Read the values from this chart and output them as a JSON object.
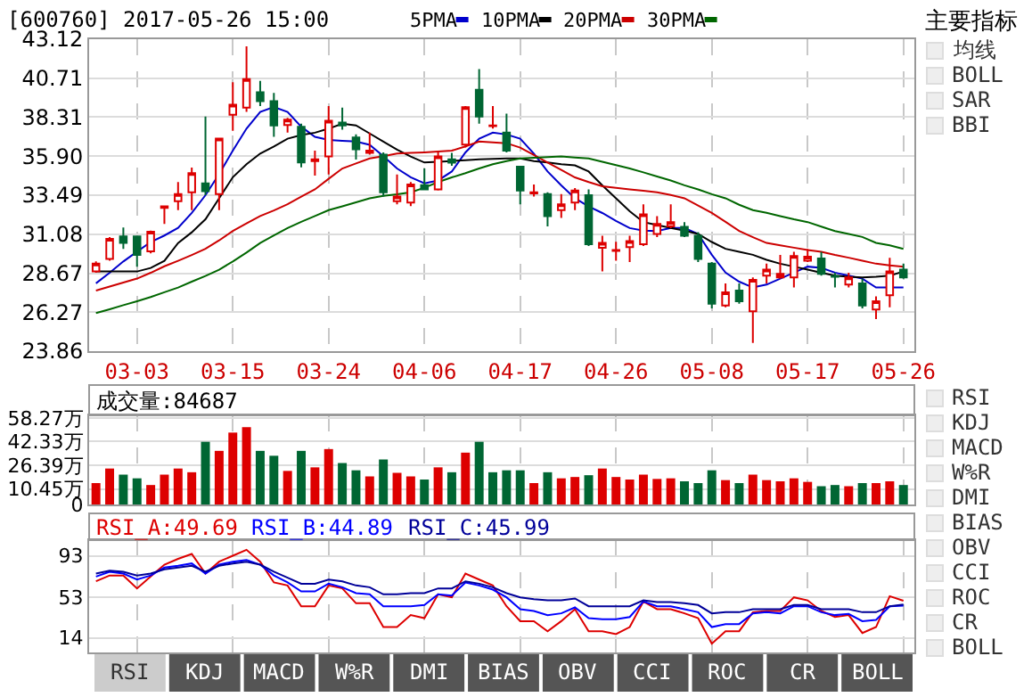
{
  "chart_data": [
    {
      "type": "candlestick",
      "title": "[600760] 2017-05-26 15:00",
      "categories": [
        null,
        null,
        null,
        "03-03",
        null,
        null,
        null,
        null,
        null,
        null,
        "03-15",
        null,
        null,
        null,
        null,
        null,
        null,
        "03-24",
        null,
        null,
        null,
        null,
        null,
        null,
        "04-06",
        null,
        null,
        null,
        null,
        null,
        null,
        "04-17",
        null,
        null,
        null,
        null,
        null,
        null,
        "04-26",
        null,
        null,
        null,
        null,
        null,
        null,
        "05-08",
        null,
        null,
        null,
        null,
        null,
        null,
        "05-17",
        null,
        null,
        null,
        null,
        null,
        null,
        "05-26"
      ],
      "ohlc": [
        [
          28.78,
          29.4,
          28.7,
          29.26
        ],
        [
          29.55,
          30.9,
          29.45,
          30.8
        ],
        [
          30.95,
          31.5,
          30.18,
          30.54
        ],
        [
          30.95,
          31.0,
          29.07,
          29.8
        ],
        [
          30.03,
          31.3,
          29.9,
          31.24
        ],
        [
          32.7,
          32.85,
          31.72,
          32.8
        ],
        [
          33.12,
          34.3,
          32.57,
          33.56
        ],
        [
          33.67,
          35.2,
          32.57,
          34.85
        ],
        [
          34.22,
          38.34,
          33.49,
          33.74
        ],
        [
          33.56,
          36.98,
          32.57,
          36.98
        ],
        [
          38.45,
          40.47,
          37.46,
          39.08
        ],
        [
          38.89,
          42.68,
          38.63,
          40.66
        ],
        [
          39.85,
          40.55,
          39.0,
          39.3
        ],
        [
          39.3,
          39.81,
          37.09,
          37.79
        ],
        [
          37.83,
          38.27,
          37.35,
          38.16
        ],
        [
          37.72,
          37.9,
          35.21,
          35.51
        ],
        [
          35.6,
          36.24,
          34.7,
          35.7
        ],
        [
          35.88,
          39.0,
          34.77,
          38.08
        ],
        [
          37.97,
          38.89,
          37.53,
          37.79
        ],
        [
          37.05,
          37.24,
          35.69,
          36.32
        ],
        [
          36.1,
          37.35,
          35.99,
          36.24
        ],
        [
          35.99,
          36.13,
          33.41,
          33.67
        ],
        [
          33.12,
          34.77,
          32.93,
          33.41
        ],
        [
          33.04,
          34.3,
          32.82,
          34.15
        ],
        [
          34.11,
          35.14,
          33.8,
          33.85
        ],
        [
          33.85,
          36.13,
          33.78,
          35.88
        ],
        [
          35.7,
          36.1,
          35.3,
          35.5
        ],
        [
          36.61,
          39.0,
          36.43,
          38.93
        ],
        [
          40.0,
          41.28,
          37.9,
          38.34
        ],
        [
          37.75,
          39.0,
          37.6,
          37.8
        ],
        [
          37.35,
          38.52,
          36.13,
          36.24
        ],
        [
          35.25,
          35.25,
          32.93,
          33.78
        ],
        [
          33.6,
          34.15,
          33.41,
          33.67
        ],
        [
          33.56,
          33.67,
          31.57,
          32.2
        ],
        [
          32.57,
          33.56,
          32.09,
          32.93
        ],
        [
          33.04,
          33.93,
          32.57,
          33.78
        ],
        [
          33.49,
          33.85,
          30.36,
          30.47
        ],
        [
          30.25,
          30.99,
          28.78,
          30.54
        ],
        [
          30.05,
          30.62,
          29.44,
          30.1
        ],
        [
          30.29,
          30.99,
          29.37,
          30.65
        ],
        [
          30.47,
          32.93,
          30.36,
          32.31
        ],
        [
          31.1,
          32.2,
          30.9,
          31.72
        ],
        [
          31.57,
          32.93,
          31.46,
          31.83
        ],
        [
          31.54,
          31.83,
          30.91,
          30.99
        ],
        [
          30.99,
          31.21,
          29.37,
          29.55
        ],
        [
          29.26,
          29.37,
          26.5,
          26.79
        ],
        [
          26.68,
          28.04,
          26.57,
          27.49
        ],
        [
          27.6,
          28.04,
          26.79,
          26.94
        ],
        [
          26.32,
          28.41,
          24.37,
          28.26
        ],
        [
          28.52,
          29.26,
          28.04,
          28.89
        ],
        [
          28.41,
          29.81,
          28.33,
          28.63
        ],
        [
          28.41,
          30.0,
          27.79,
          29.74
        ],
        [
          29.44,
          30.18,
          29.37,
          29.7
        ],
        [
          29.59,
          30.0,
          28.52,
          28.63
        ],
        [
          28.5,
          28.7,
          27.79,
          28.45
        ],
        [
          27.97,
          28.7,
          27.79,
          28.41
        ],
        [
          28.04,
          28.33,
          26.5,
          26.68
        ],
        [
          26.43,
          27.24,
          25.84,
          26.94
        ],
        [
          27.31,
          29.63,
          26.57,
          28.78
        ],
        [
          28.89,
          29.26,
          28.33,
          28.41
        ]
      ],
      "series": [
        {
          "name": "5PMA",
          "type": "line",
          "color": "#0000cc",
          "values": [
            28.05,
            28.7,
            29.4,
            30.0,
            30.6,
            31.0,
            31.47,
            32.4,
            33.49,
            34.8,
            36.24,
            37.6,
            38.63,
            38.93,
            38.63,
            37.72,
            37.09,
            36.9,
            36.85,
            36.8,
            36.6,
            35.9,
            35.14,
            34.6,
            34.22,
            34.4,
            34.95,
            36.13,
            36.98,
            37.35,
            37.24,
            36.98,
            36.06,
            34.95,
            34.1,
            33.3,
            32.8,
            32.39,
            31.9,
            31.46,
            31.3,
            31.28,
            31.47,
            31.47,
            31.1,
            29.81,
            28.71,
            28.15,
            27.79,
            27.97,
            28.34,
            28.71,
            29.08,
            29.0,
            28.71,
            28.52,
            28.34,
            27.79,
            27.79,
            27.79
          ]
        },
        {
          "name": "10PMA",
          "type": "line",
          "color": "#000000",
          "values": [
            28.78,
            28.78,
            28.78,
            28.78,
            29.0,
            29.44,
            30.54,
            31.2,
            32.0,
            33.3,
            34.6,
            35.4,
            36.06,
            36.5,
            36.98,
            37.2,
            37.35,
            37.6,
            37.9,
            37.8,
            37.3,
            36.8,
            36.3,
            35.88,
            35.51,
            35.55,
            35.6,
            35.65,
            35.7,
            35.73,
            35.76,
            35.76,
            35.6,
            35.51,
            35.4,
            35.33,
            34.95,
            34.1,
            33.3,
            32.5,
            31.83,
            31.65,
            31.47,
            31.3,
            31.1,
            30.6,
            30.18,
            30.0,
            29.81,
            29.5,
            29.26,
            29.08,
            28.89,
            28.7,
            28.52,
            28.45,
            28.41,
            28.45,
            28.52,
            28.78
          ]
        },
        {
          "name": "20PMA",
          "type": "line",
          "color": "#cc0000",
          "values": [
            27.6,
            27.85,
            28.1,
            28.34,
            28.7,
            29.1,
            29.44,
            29.8,
            30.18,
            30.7,
            31.28,
            31.75,
            32.2,
            32.55,
            32.93,
            33.4,
            33.85,
            34.5,
            35.14,
            35.45,
            35.76,
            35.9,
            36.06,
            36.1,
            36.13,
            36.18,
            36.24,
            36.5,
            36.8,
            36.75,
            36.7,
            36.43,
            35.97,
            35.51,
            35.05,
            34.59,
            34.3,
            34.04,
            33.95,
            33.85,
            33.76,
            33.67,
            33.5,
            33.3,
            32.85,
            32.39,
            31.85,
            31.28,
            30.9,
            30.54,
            30.4,
            30.25,
            30.1,
            29.99,
            29.8,
            29.63,
            29.45,
            29.26,
            29.15,
            29.08
          ]
        },
        {
          "name": "30PMA",
          "type": "line",
          "color": "#006600",
          "values": [
            26.21,
            26.45,
            26.7,
            26.94,
            27.2,
            27.5,
            27.79,
            28.15,
            28.5,
            28.89,
            29.4,
            29.95,
            30.54,
            31.0,
            31.46,
            31.85,
            32.2,
            32.57,
            32.8,
            33.05,
            33.3,
            33.45,
            33.55,
            33.67,
            33.95,
            34.3,
            34.59,
            34.85,
            35.14,
            35.4,
            35.6,
            35.76,
            35.8,
            35.84,
            35.88,
            35.82,
            35.76,
            35.55,
            35.35,
            35.14,
            34.9,
            34.65,
            34.4,
            34.1,
            33.85,
            33.55,
            33.3,
            32.9,
            32.57,
            32.4,
            32.2,
            32.0,
            31.83,
            31.55,
            31.28,
            31.1,
            30.91,
            30.55,
            30.4,
            30.18
          ]
        }
      ],
      "ylim": [
        23.86,
        43.12
      ],
      "yticks": [
        23.86,
        26.27,
        28.67,
        31.08,
        33.49,
        {
          "value": 35.9,
          "label": "35.90"
        },
        38.31,
        40.71,
        43.12
      ],
      "grid": true,
      "legend": "top"
    },
    {
      "type": "bar",
      "title": "成交量:84687",
      "categories": [
        null,
        null,
        null,
        null,
        null,
        null,
        null,
        null,
        null,
        null,
        null,
        null,
        null,
        null,
        null,
        null,
        null,
        null,
        null,
        null,
        null,
        null,
        null,
        null,
        null,
        null,
        null,
        null,
        null,
        null,
        null,
        null,
        null,
        null,
        null,
        null,
        null,
        null,
        null,
        null,
        null,
        null,
        null,
        null,
        null,
        null,
        null,
        null,
        null,
        null,
        null,
        null,
        null,
        null,
        null,
        null,
        null,
        null,
        null,
        null
      ],
      "values": [
        14.4,
        24.2,
        20.1,
        17.6,
        13.1,
        20.1,
        24.2,
        21.7,
        42.2,
        36.1,
        48.4,
        52.1,
        36.1,
        32.8,
        22.6,
        36.1,
        25.0,
        37.3,
        27.9,
        23.0,
        18.9,
        30.3,
        21.3,
        18.9,
        16.8,
        25.0,
        21.7,
        34.9,
        42.2,
        21.7,
        23.0,
        23.0,
        14.4,
        21.7,
        17.6,
        18.5,
        19.7,
        24.2,
        18.5,
        16.8,
        20.1,
        17.2,
        17.6,
        15.6,
        14.4,
        23.0,
        16.4,
        14.4,
        20.1,
        16.4,
        15.6,
        17.6,
        15.2,
        12.3,
        13.1,
        12.3,
        14.4,
        14.4,
        15.6,
        13.1
      ],
      "colors": [
        "#dd0000",
        "#dd0000",
        "#006633",
        "#006633",
        "#dd0000",
        "#dd0000",
        "#dd0000",
        "#dd0000",
        "#006633",
        "#dd0000",
        "#dd0000",
        "#dd0000",
        "#006633",
        "#006633",
        "#dd0000",
        "#006633",
        "#dd0000",
        "#dd0000",
        "#006633",
        "#006633",
        "#dd0000",
        "#006633",
        "#dd0000",
        "#dd0000",
        "#006633",
        "#dd0000",
        "#006633",
        "#dd0000",
        "#006633",
        "#006633",
        "#006633",
        "#006633",
        "#dd0000",
        "#006633",
        "#dd0000",
        "#dd0000",
        "#006633",
        "#dd0000",
        "#dd0000",
        "#dd0000",
        "#dd0000",
        "#dd0000",
        "#dd0000",
        "#006633",
        "#006633",
        "#006633",
        "#dd0000",
        "#006633",
        "#dd0000",
        "#dd0000",
        "#dd0000",
        "#dd0000",
        "#dd0000",
        "#006633",
        "#006633",
        "#dd0000",
        "#006633",
        "#dd0000",
        "#dd0000",
        "#006633"
      ],
      "ylim": [
        0,
        60
      ],
      "yticks": [
        0,
        {
          "value": 10.45,
          "label": "10.45万"
        },
        {
          "value": 26.39,
          "label": "26.39万"
        },
        {
          "value": 42.33,
          "label": "42.33万"
        },
        {
          "value": 58.27,
          "label": "58.27万"
        }
      ],
      "grid": true,
      "tick_labels": "y"
    },
    {
      "type": "line",
      "categories": [
        null,
        null,
        null,
        null,
        null,
        null,
        null,
        null,
        null,
        null,
        null,
        null,
        null,
        null,
        null,
        null,
        null,
        null,
        null,
        null,
        null,
        null,
        null,
        null,
        null,
        null,
        null,
        null,
        null,
        null,
        null,
        null,
        null,
        null,
        null,
        null,
        null,
        null,
        null,
        null,
        null,
        null,
        null,
        null,
        null,
        null,
        null,
        null,
        null,
        null,
        null,
        null,
        null,
        null,
        null,
        null,
        null,
        null,
        null,
        null
      ],
      "series": [
        {
          "name": "RSI_A:49.69",
          "color": "#dd0000",
          "values": [
            68.4,
            74,
            74,
            61.6,
            73,
            84.4,
            90,
            94.7,
            75.9,
            87.3,
            93,
            98.7,
            87.3,
            67.3,
            64.4,
            44.4,
            44.4,
            64.4,
            61.6,
            47.3,
            47.3,
            24.4,
            24.4,
            35.9,
            33,
            55.9,
            53,
            75.9,
            70.1,
            64.4,
            44.4,
            30.1,
            30.1,
            20.4,
            30.1,
            41.6,
            20.4,
            20.4,
            17.6,
            24.4,
            49,
            41.6,
            41.6,
            37.6,
            33,
            8.4,
            20.4,
            20.4,
            38.7,
            39.9,
            39.9,
            53,
            50.1,
            39.9,
            34.1,
            35.9,
            18.7,
            24.4,
            54.1,
            49.7
          ]
        },
        {
          "name": "RSI_B:44.89",
          "color": "#0000ff",
          "values": [
            73,
            77.6,
            75.9,
            70.1,
            74,
            81.6,
            83.3,
            85.6,
            75.9,
            84.4,
            87.3,
            89,
            84.4,
            74,
            67.3,
            58.7,
            58.7,
            66.1,
            62.7,
            57,
            55.9,
            44.4,
            44.4,
            44.4,
            45.6,
            55.9,
            54.7,
            67.3,
            64.4,
            60.4,
            53,
            41.6,
            39.9,
            35.9,
            37.6,
            43.3,
            33,
            31.9,
            31.9,
            34.1,
            49,
            44.4,
            44.4,
            41.6,
            38.7,
            24.4,
            27.3,
            27.3,
            37.6,
            38.7,
            37.6,
            44.4,
            44.4,
            38.7,
            35.9,
            37,
            30.1,
            31.3,
            44.4,
            44.9
          ]
        },
        {
          "name": "RSI_C:45.99",
          "color": "#000099",
          "values": [
            75.9,
            78.7,
            77.6,
            74,
            75.9,
            79.9,
            81.6,
            83.3,
            77.6,
            83.3,
            85.6,
            87.3,
            84.4,
            77.6,
            71.9,
            66.1,
            66.1,
            70.1,
            68.4,
            64.4,
            62.7,
            55.9,
            55.9,
            57,
            57,
            61.6,
            61.6,
            68.4,
            66.1,
            62.7,
            57,
            53,
            51.3,
            50.1,
            50.1,
            51.9,
            44.4,
            44.4,
            44.4,
            44.4,
            50.1,
            48.4,
            48.4,
            47.3,
            45.6,
            37.6,
            38.7,
            38.7,
            41.6,
            41.6,
            41.6,
            45.6,
            45.6,
            41.6,
            41.6,
            41.6,
            38.7,
            38.7,
            44.4,
            46
          ]
        }
      ],
      "ylim": [
        0,
        108
      ],
      "yticks": [
        14,
        53,
        93
      ],
      "grid": true,
      "tick_labels": "y"
    },
    {
      "type": "other",
      "title": "主要指标",
      "annotations": [
        "均线",
        "BOLL",
        "SAR",
        "BBI"
      ]
    },
    {
      "type": "other",
      "annotations": [
        "RSI",
        "KDJ",
        "MACD",
        "W%R",
        "DMI",
        "BIAS",
        "OBV",
        "CCI",
        "ROC",
        "CR",
        "BOLL"
      ]
    },
    {
      "type": "other",
      "annotations": [
        "RSI",
        "KDJ",
        "MACD",
        "W%R",
        "DMI",
        "BIAS",
        "OBV",
        "CCI",
        "ROC",
        "CR",
        "BOLL"
      ]
    }
  ]
}
